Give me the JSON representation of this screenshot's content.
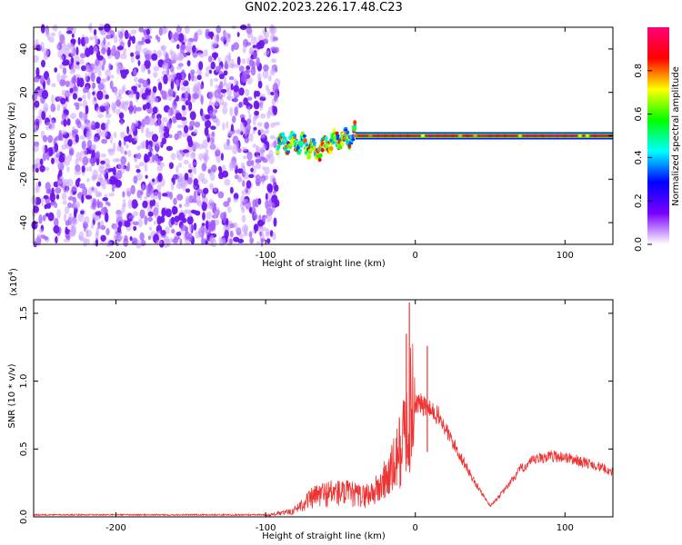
{
  "title": "GN02.2023.226.17.48.C23",
  "chart_data": [
    {
      "type": "heatmap",
      "xlabel": "Height of straight line (km)",
      "ylabel": "Frequency (Hz)",
      "xlim": [
        -255,
        132
      ],
      "ylim": [
        -50,
        50
      ],
      "x_ticks": [
        -200,
        -100,
        0,
        100
      ],
      "y_ticks": [
        -40,
        -20,
        0,
        20,
        40
      ],
      "colorbar": {
        "label": "Normalized spectral amplitude",
        "range": [
          0.0,
          1.0
        ],
        "ticks": [
          "0.0",
          "0.2",
          "0.4",
          "0.6",
          "0.8"
        ],
        "colors": [
          "#ffffff",
          "#7a00ff",
          "#0000ff",
          "#00ffff",
          "#00ff00",
          "#ffff00",
          "#ff0000",
          "#ff0077"
        ]
      },
      "regions": [
        {
          "x_range": [
            -255,
            -92
          ],
          "f_range": [
            -50,
            50
          ],
          "amplitude": [
            0.0,
            0.25
          ],
          "description": "noise"
        },
        {
          "x_range": [
            -92,
            -40
          ],
          "f_center": [
            -3,
            -3,
            -7,
            -2,
            1
          ],
          "amplitude": [
            0.3,
            0.9
          ]
        },
        {
          "x_range": [
            -40,
            132
          ],
          "f_center": 0,
          "amplitude": [
            0.7,
            1.0
          ]
        }
      ]
    },
    {
      "type": "line",
      "xlabel": "Height of straight line (km)",
      "ylabel": "SNR (10 * v/v)",
      "y_multiplier": "(x10^4)",
      "xlim": [
        -255,
        132
      ],
      "ylim": [
        0,
        1.6
      ],
      "x_ticks": [
        -200,
        -100,
        0,
        100
      ],
      "y_ticks": [
        "0.0",
        "0.5",
        "1.0",
        "1.5"
      ],
      "color": "#ee3333",
      "envelope": {
        "x": [
          -255,
          -100,
          -82,
          -75,
          -65,
          -55,
          -45,
          -35,
          -25,
          -15,
          -10,
          -6,
          -3,
          0,
          5,
          10,
          15,
          20,
          30,
          40,
          50,
          60,
          70,
          80,
          90,
          100,
          110,
          120,
          132
        ],
        "y": [
          0.01,
          0.01,
          0.04,
          0.1,
          0.16,
          0.18,
          0.17,
          0.15,
          0.2,
          0.35,
          0.5,
          0.65,
          0.8,
          0.85,
          0.82,
          0.78,
          0.75,
          0.65,
          0.45,
          0.25,
          0.08,
          0.2,
          0.35,
          0.42,
          0.45,
          0.44,
          0.41,
          0.38,
          0.33
        ]
      },
      "spikes": [
        {
          "x": -6,
          "y": 1.35
        },
        {
          "x": -4,
          "y": 1.58
        },
        {
          "x": 8,
          "y": 1.26
        }
      ]
    }
  ]
}
